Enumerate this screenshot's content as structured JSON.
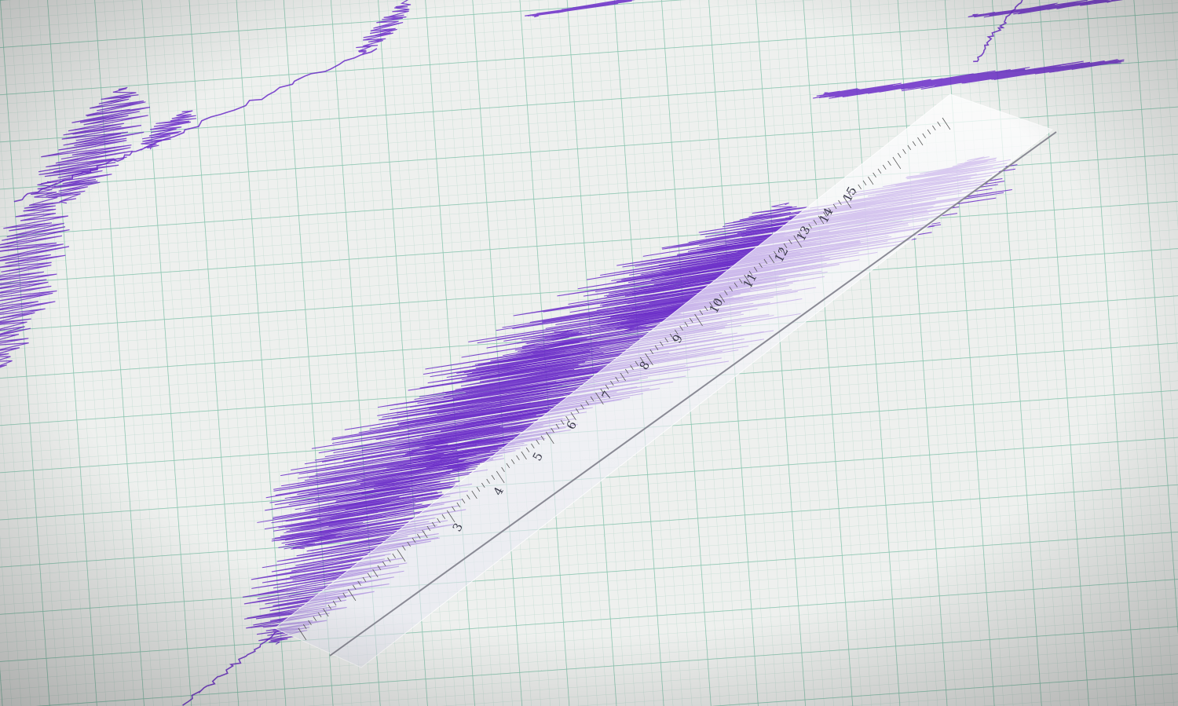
{
  "image": {
    "subject": "seismograph trace on graph paper with transparent ruler",
    "colors": {
      "paper": "#eef0ee",
      "grid_minor": "#b9d8cc",
      "grid_major": "#7fbfa8",
      "trace": "#6a2bc8",
      "ruler": "#f4f4fa"
    }
  },
  "ruler": {
    "labels": [
      "3",
      "4",
      "5",
      "6",
      "7",
      "8",
      "9",
      "10",
      "11",
      "12",
      "13",
      "14",
      "15"
    ]
  }
}
